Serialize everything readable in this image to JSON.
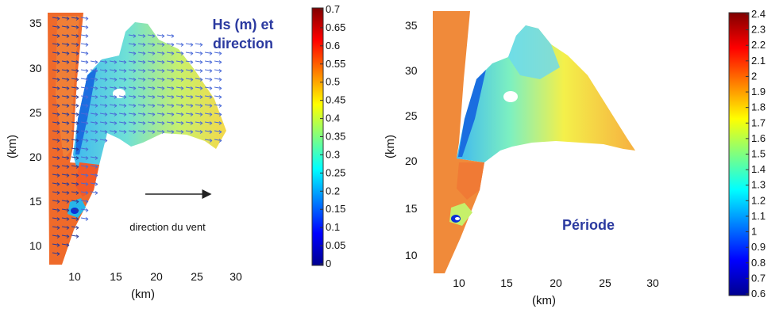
{
  "chart_data": [
    {
      "type": "heatmap",
      "title": "Hs (m) et direction",
      "xlabel": "(km)",
      "ylabel": "(km)",
      "xlim": [
        7,
        30
      ],
      "ylim": [
        8,
        36
      ],
      "x_ticks": [
        "10",
        "15",
        "20",
        "25",
        "30"
      ],
      "y_ticks": [
        "10",
        "15",
        "20",
        "25",
        "30",
        "35"
      ],
      "annotation": "direction du vent",
      "colorbar": {
        "min": 0,
        "max": 0.7,
        "ticks": [
          "0.7",
          "0.65",
          "0.6",
          "0.55",
          "0.5",
          "0.45",
          "0.4",
          "0.35",
          "0.3",
          "0.25",
          "0.2",
          "0.15",
          "0.1",
          "0.05",
          "0"
        ]
      },
      "vectors": "arrows pointing east-southeast over the field",
      "grid": false
    },
    {
      "type": "heatmap",
      "title": "Période",
      "xlabel": "(km)",
      "ylabel": "(km)",
      "xlim": [
        7,
        30
      ],
      "ylim": [
        8,
        36
      ],
      "x_ticks": [
        "10",
        "15",
        "20",
        "25",
        "30"
      ],
      "y_ticks": [
        "10",
        "15",
        "20",
        "25",
        "30",
        "35"
      ],
      "colorbar": {
        "min": 0.6,
        "max": 2.4,
        "ticks": [
          "2.4",
          "2.3",
          "2.2",
          "2.1",
          "2",
          "1.9",
          "1.8",
          "1.7",
          "1.6",
          "1.5",
          "1.4",
          "1.3",
          "1.2",
          "1.1",
          "1",
          "0.9",
          "0.8",
          "0.7",
          "0.6"
        ]
      },
      "grid": false
    }
  ],
  "colors": {
    "title_blue": "#2b3aa0",
    "jet_dark_blue": "#00008f",
    "jet_red": "#b30000"
  }
}
